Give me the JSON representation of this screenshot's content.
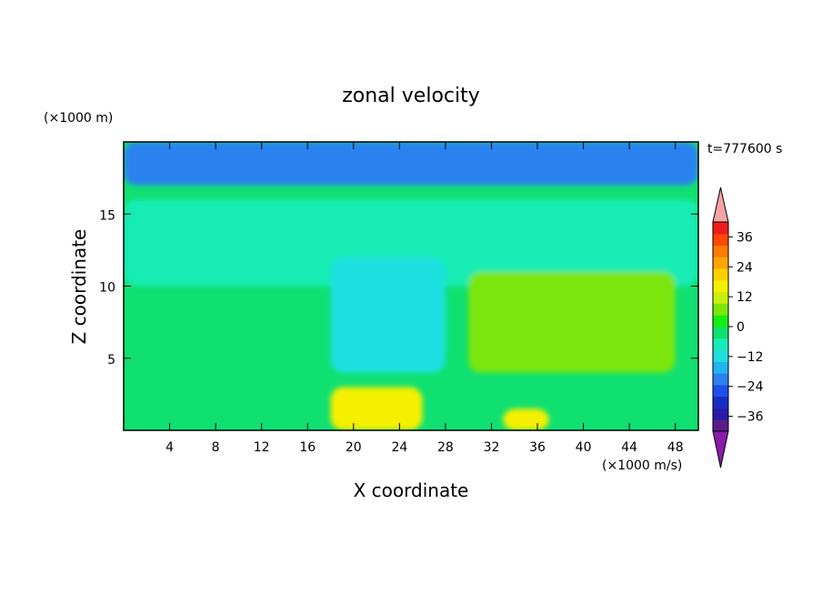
{
  "chart_data": {
    "type": "heatmap",
    "title": "zonal velocity",
    "xlabel": "X coordinate",
    "ylabel": "Z coordinate",
    "x_unit": "(×1000 m/s)",
    "y_unit": "(×1000 m)",
    "time_label": "t=777600 s",
    "xlim": [
      0,
      50
    ],
    "ylim": [
      0,
      20
    ],
    "x_ticks": [
      "4",
      "8",
      "12",
      "16",
      "20",
      "24",
      "28",
      "32",
      "36",
      "40",
      "44",
      "48"
    ],
    "y_ticks": [
      "5",
      "10",
      "15"
    ],
    "colorbar": {
      "tick_labels": [
        "36",
        "24",
        "12",
        "0",
        "−12",
        "−24",
        "−36"
      ],
      "tick_values": [
        36,
        24,
        12,
        0,
        -12,
        -24,
        -36
      ],
      "range": [
        -42,
        42
      ],
      "colors": [
        "#5c1a8c",
        "#2a1aa8",
        "#1a2cc8",
        "#1e50e8",
        "#2c82f0",
        "#20b4f0",
        "#1ee0e0",
        "#18ecb4",
        "#10e070",
        "#14ee14",
        "#7ae60a",
        "#c8ee10",
        "#f4f000",
        "#ffd000",
        "#ffa400",
        "#ff7c00",
        "#ff4800",
        "#ee1c1c"
      ],
      "upper_extend_color": "#f5a3a3",
      "lower_extend_color": "#8b1aa8"
    },
    "dominant_regions": [
      {
        "description": "upper layer",
        "z_range": [
          17,
          20
        ],
        "value": -22
      },
      {
        "description": "middle band",
        "z_range": [
          10,
          16
        ],
        "value": -6
      },
      {
        "description": "central column",
        "x_range": [
          18,
          28
        ],
        "z_range": [
          4,
          12
        ],
        "value": -12
      },
      {
        "description": "right lower lobe",
        "x_range": [
          30,
          48
        ],
        "z_range": [
          4,
          11
        ],
        "value": 8
      },
      {
        "description": "bottom near x=22",
        "x_range": [
          18,
          26
        ],
        "z_range": [
          0,
          3
        ],
        "value": 14
      },
      {
        "description": "bottom near x=35",
        "x_range": [
          33,
          37
        ],
        "z_range": [
          0,
          1.5
        ],
        "value": 16
      }
    ]
  }
}
